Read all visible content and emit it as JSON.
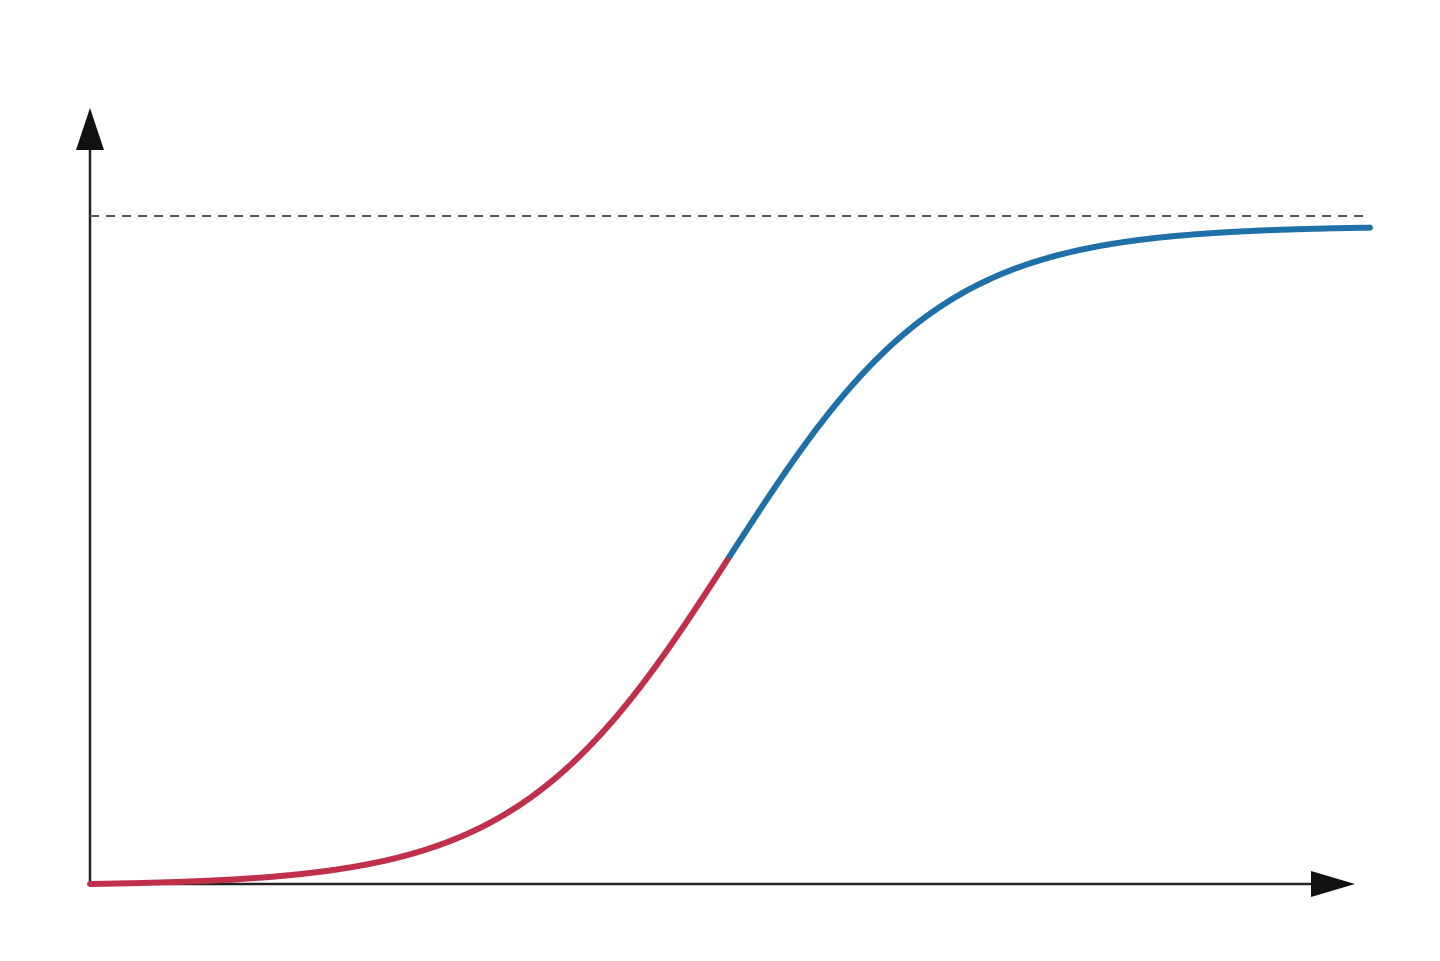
{
  "chart_data": {
    "type": "line",
    "title": "",
    "xlabel": "",
    "ylabel": "",
    "grid": false,
    "legend": "none",
    "xlim": [
      0,
      10
    ],
    "ylim": [
      0,
      1.1
    ],
    "asymptote": {
      "y": 1.0,
      "style": "dashed",
      "color": "#555555"
    },
    "curve": {
      "function": "logistic",
      "midpoint_x": 5.0,
      "steepness": 1.2
    },
    "series": [
      {
        "segment": "lower",
        "color": "#c0304a",
        "x_range": [
          0,
          5.0
        ]
      },
      {
        "segment": "upper",
        "color": "#1f6fa8",
        "x_range": [
          5.0,
          10.0
        ]
      }
    ]
  }
}
